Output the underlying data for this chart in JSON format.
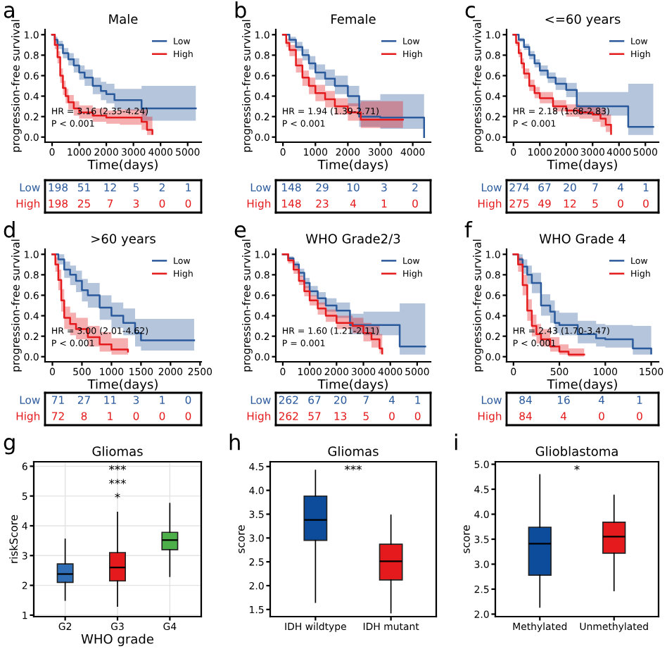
{
  "chart_data": [
    {
      "type": "step",
      "title": "Male",
      "xlabel": "Time(days)",
      "ylabel": "progression-free survival",
      "annotations": [
        "a",
        "HR = 3.16 (2.35-4.24)",
        "P < 0.001"
      ],
      "xlim": [
        -260,
        5500
      ],
      "xticks": [
        0,
        1000,
        2000,
        3000,
        4000,
        5000
      ],
      "ylim": [
        -0.05,
        1.05
      ],
      "yticks": [
        {
          "value": 0,
          "label": "0.0"
        },
        0.2,
        0.4,
        0.6,
        0.8,
        {
          "value": 1,
          "label": "1.0"
        }
      ],
      "legend": "top right",
      "series": [
        {
          "name": "Low",
          "color": "#2b5a9c",
          "x": [
            0,
            100,
            200,
            400,
            600,
            800,
            1000,
            1200,
            1500,
            1800,
            2000,
            2300,
            2700,
            3300,
            5300
          ],
          "values": [
            1,
            0.95,
            0.9,
            0.82,
            0.76,
            0.7,
            0.63,
            0.58,
            0.5,
            0.45,
            0.42,
            0.36,
            0.36,
            0.28,
            0.28
          ],
          "lower": [
            1,
            0.92,
            0.86,
            0.77,
            0.7,
            0.63,
            0.56,
            0.5,
            0.42,
            0.36,
            0.33,
            0.27,
            0.26,
            0.16,
            0.16
          ],
          "upper": [
            1,
            0.98,
            0.94,
            0.87,
            0.82,
            0.77,
            0.7,
            0.66,
            0.58,
            0.54,
            0.52,
            0.47,
            0.47,
            0.5,
            0.5
          ]
        },
        {
          "name": "High",
          "color": "#e41a1c",
          "x": [
            0,
            100,
            200,
            300,
            400,
            500,
            600,
            800,
            1000,
            1500,
            2000,
            2500,
            3300,
            3500,
            3700
          ],
          "values": [
            1,
            0.9,
            0.78,
            0.6,
            0.48,
            0.4,
            0.34,
            0.28,
            0.24,
            0.21,
            0.19,
            0.19,
            0.15,
            0.07,
            0.03
          ],
          "lower": [
            1,
            0.86,
            0.72,
            0.53,
            0.41,
            0.33,
            0.27,
            0.21,
            0.18,
            0.15,
            0.13,
            0.12,
            0.07,
            0.02,
            0.01
          ],
          "upper": [
            1,
            0.94,
            0.84,
            0.67,
            0.55,
            0.47,
            0.41,
            0.35,
            0.31,
            0.28,
            0.26,
            0.27,
            0.27,
            0.2,
            0.2
          ]
        }
      ]
    },
    {
      "type": "other",
      "colors": [
        "#2b5a9c",
        "#e41a1c"
      ],
      "annotations": [
        "Low",
        "198",
        "51",
        "12",
        "5",
        "2",
        "1",
        "High",
        "198",
        "25",
        "7",
        "3",
        "0",
        "0"
      ]
    },
    {
      "type": "step",
      "title": "Female",
      "xlabel": "Time(days)",
      "ylabel": "progression-free survival",
      "annotations": [
        "b",
        "HR = 1.94 (1.39-2.71)",
        "P < 0.001"
      ],
      "xlim": [
        -220,
        4550
      ],
      "xticks": [
        0,
        1000,
        2000,
        3000,
        4000
      ],
      "ylim": [
        -0.05,
        1.05
      ],
      "yticks": [
        {
          "value": 0,
          "label": "0.0"
        },
        0.2,
        0.4,
        0.6,
        0.8,
        {
          "value": 1,
          "label": "1.0"
        }
      ],
      "legend": "top right",
      "series": [
        {
          "name": "Low",
          "color": "#2b5a9c",
          "x": [
            0,
            200,
            400,
            600,
            800,
            1000,
            1300,
            1600,
            2000,
            2350,
            3000,
            4300,
            4350
          ],
          "values": [
            1,
            0.95,
            0.88,
            0.8,
            0.72,
            0.63,
            0.57,
            0.5,
            0.4,
            0.2,
            0.19,
            0.19,
            0.0
          ],
          "lower": [
            1,
            0.92,
            0.84,
            0.75,
            0.66,
            0.56,
            0.5,
            0.42,
            0.3,
            0.1,
            0.08,
            0.08,
            0.0
          ],
          "upper": [
            1,
            0.98,
            0.93,
            0.86,
            0.79,
            0.71,
            0.66,
            0.6,
            0.5,
            0.36,
            0.42,
            0.42,
            0.0
          ]
        },
        {
          "name": "High",
          "color": "#e41a1c",
          "x": [
            0,
            100,
            200,
            400,
            600,
            800,
            1000,
            1300,
            1600,
            2000,
            2400,
            3000,
            3700
          ],
          "values": [
            1,
            0.92,
            0.85,
            0.7,
            0.58,
            0.5,
            0.43,
            0.37,
            0.3,
            0.24,
            0.17,
            0.17,
            0.17
          ],
          "lower": [
            1,
            0.88,
            0.79,
            0.63,
            0.5,
            0.42,
            0.35,
            0.29,
            0.22,
            0.16,
            0.09,
            0.09,
            0.09
          ],
          "upper": [
            1,
            0.96,
            0.9,
            0.77,
            0.65,
            0.58,
            0.51,
            0.45,
            0.38,
            0.33,
            0.35,
            0.35,
            0.35
          ]
        }
      ]
    },
    {
      "type": "other",
      "colors": [
        "#2b5a9c",
        "#e41a1c"
      ],
      "annotations": [
        "Low",
        "148",
        "29",
        "10",
        "3",
        "2",
        "High",
        "148",
        "23",
        "4",
        "1",
        "0"
      ]
    },
    {
      "type": "step",
      "title": "<=60 years",
      "xlabel": "Time(days)",
      "ylabel": "progression-free survival",
      "annotations": [
        "c",
        "HR = 2.18 (1.68-2.83)",
        "P < 0.001"
      ],
      "xlim": [
        -260,
        5500
      ],
      "xticks": [
        0,
        1000,
        2000,
        3000,
        4000,
        5000
      ],
      "ylim": [
        -0.05,
        1.05
      ],
      "yticks": [
        {
          "value": 0,
          "label": "0.0"
        },
        0.2,
        0.4,
        0.6,
        0.8,
        {
          "value": 1,
          "label": "1.0"
        }
      ],
      "legend": "top right",
      "series": [
        {
          "name": "Low",
          "color": "#2b5a9c",
          "x": [
            0,
            200,
            400,
            600,
            800,
            1000,
            1300,
            1600,
            2000,
            2400,
            3000,
            4300,
            4350,
            5300
          ],
          "values": [
            1,
            0.95,
            0.88,
            0.8,
            0.72,
            0.65,
            0.58,
            0.52,
            0.46,
            0.3,
            0.3,
            0.3,
            0.1,
            0.1
          ],
          "lower": [
            1,
            0.93,
            0.85,
            0.76,
            0.68,
            0.6,
            0.53,
            0.46,
            0.39,
            0.22,
            0.21,
            0.21,
            0.02,
            0.02
          ],
          "upper": [
            1,
            0.97,
            0.91,
            0.84,
            0.76,
            0.7,
            0.63,
            0.58,
            0.53,
            0.44,
            0.44,
            0.44,
            0.52,
            0.52
          ]
        },
        {
          "name": "High",
          "color": "#e41a1c",
          "x": [
            0,
            100,
            200,
            300,
            400,
            600,
            800,
            1000,
            1500,
            2000,
            2500,
            3000,
            3300,
            3500,
            3700
          ],
          "values": [
            1,
            0.92,
            0.82,
            0.72,
            0.62,
            0.5,
            0.43,
            0.38,
            0.3,
            0.26,
            0.24,
            0.22,
            0.18,
            0.12,
            0.03
          ],
          "lower": [
            1,
            0.89,
            0.78,
            0.67,
            0.57,
            0.45,
            0.38,
            0.33,
            0.25,
            0.2,
            0.18,
            0.15,
            0.1,
            0.05,
            0.01
          ],
          "upper": [
            1,
            0.95,
            0.86,
            0.77,
            0.67,
            0.56,
            0.49,
            0.44,
            0.36,
            0.32,
            0.31,
            0.3,
            0.28,
            0.22,
            0.2
          ]
        }
      ]
    },
    {
      "type": "other",
      "colors": [
        "#2b5a9c",
        "#e41a1c"
      ],
      "annotations": [
        "Low",
        "274",
        "67",
        "20",
        "7",
        "4",
        "1",
        "High",
        "275",
        "49",
        "12",
        "5",
        "0",
        "0"
      ]
    },
    {
      "type": "step",
      "title": ">60 years",
      "xlabel": "Time(days)",
      "ylabel": "progression-free survival",
      "annotations": [
        "d",
        "HR = 3.00 (2.01-4.62)",
        "P < 0.001"
      ],
      "xlim": [
        -125,
        2520
      ],
      "xticks": [
        0,
        500,
        1000,
        1500,
        2000,
        2500
      ],
      "ylim": [
        -0.05,
        1.05
      ],
      "yticks": [
        {
          "value": 0,
          "label": "0.0"
        },
        0.2,
        0.4,
        0.6,
        0.8,
        {
          "value": 1,
          "label": "1.0"
        }
      ],
      "legend": "top right",
      "series": [
        {
          "name": "Low",
          "color": "#2b5a9c",
          "x": [
            0,
            100,
            200,
            300,
            400,
            500,
            600,
            800,
            1000,
            1200,
            1400,
            1500,
            2400
          ],
          "values": [
            1,
            0.95,
            0.85,
            0.8,
            0.74,
            0.65,
            0.6,
            0.48,
            0.4,
            0.33,
            0.23,
            0.16,
            0.16
          ],
          "lower": [
            1,
            0.9,
            0.77,
            0.7,
            0.63,
            0.54,
            0.48,
            0.36,
            0.28,
            0.21,
            0.1,
            0.06,
            0.06
          ],
          "upper": [
            1,
            1,
            0.93,
            0.89,
            0.84,
            0.76,
            0.72,
            0.6,
            0.53,
            0.47,
            0.37,
            0.37,
            0.37
          ]
        },
        {
          "name": "High",
          "color": "#e41a1c",
          "x": [
            0,
            50,
            100,
            150,
            200,
            300,
            400,
            600,
            800,
            1000,
            1280
          ],
          "values": [
            1,
            0.9,
            0.75,
            0.55,
            0.38,
            0.32,
            0.27,
            0.19,
            0.12,
            0.07,
            0.05
          ],
          "lower": [
            1,
            0.83,
            0.65,
            0.44,
            0.27,
            0.21,
            0.17,
            0.1,
            0.05,
            0.02,
            0.01
          ],
          "upper": [
            1,
            0.97,
            0.85,
            0.66,
            0.49,
            0.43,
            0.38,
            0.3,
            0.24,
            0.18,
            0.16
          ]
        }
      ]
    },
    {
      "type": "other",
      "colors": [
        "#2b5a9c",
        "#e41a1c"
      ],
      "annotations": [
        "Low",
        "71",
        "27",
        "11",
        "3",
        "1",
        "0",
        "High",
        "72",
        "8",
        "1",
        "0",
        "0",
        "0"
      ]
    },
    {
      "type": "step",
      "title": "WHO Grade2/3",
      "xlabel": "Time(days)",
      "ylabel": "progression-free survival",
      "annotations": [
        "e",
        "HR = 1.60 (1.21-2.11)",
        "P = 0.001"
      ],
      "xlim": [
        -260,
        5500
      ],
      "xticks": [
        0,
        1000,
        2000,
        3000,
        4000,
        5000
      ],
      "ylim": [
        -0.05,
        1.05
      ],
      "yticks": [
        {
          "value": 0,
          "label": "0.0"
        },
        0.2,
        0.4,
        0.6,
        0.8,
        {
          "value": 1,
          "label": "1.0"
        }
      ],
      "legend": "top right",
      "series": [
        {
          "name": "Low",
          "color": "#2b5a9c",
          "x": [
            0,
            200,
            400,
            600,
            800,
            1000,
            1300,
            1600,
            2000,
            2500,
            3000,
            4300,
            4350,
            5300
          ],
          "values": [
            1,
            0.96,
            0.9,
            0.82,
            0.72,
            0.64,
            0.57,
            0.5,
            0.45,
            0.31,
            0.31,
            0.31,
            0.1,
            0.1
          ],
          "lower": [
            1,
            0.94,
            0.87,
            0.78,
            0.67,
            0.59,
            0.51,
            0.44,
            0.38,
            0.22,
            0.21,
            0.21,
            0.02,
            0.02
          ],
          "upper": [
            1,
            0.98,
            0.93,
            0.86,
            0.77,
            0.69,
            0.63,
            0.57,
            0.53,
            0.42,
            0.44,
            0.44,
            0.52,
            0.52
          ]
        },
        {
          "name": "High",
          "color": "#e41a1c",
          "x": [
            0,
            200,
            400,
            600,
            800,
            1000,
            1300,
            1600,
            2000,
            2600,
            3000,
            3300,
            3600,
            3700
          ],
          "values": [
            1,
            0.94,
            0.85,
            0.74,
            0.64,
            0.55,
            0.47,
            0.4,
            0.33,
            0.3,
            0.23,
            0.17,
            0.08,
            0.03
          ],
          "lower": [
            1,
            0.91,
            0.81,
            0.7,
            0.59,
            0.5,
            0.41,
            0.34,
            0.27,
            0.23,
            0.15,
            0.09,
            0.03,
            0.01
          ],
          "upper": [
            1,
            0.97,
            0.89,
            0.79,
            0.69,
            0.6,
            0.53,
            0.46,
            0.4,
            0.38,
            0.33,
            0.3,
            0.22,
            0.2
          ]
        }
      ]
    },
    {
      "type": "other",
      "colors": [
        "#2b5a9c",
        "#e41a1c"
      ],
      "annotations": [
        "Low",
        "262",
        "67",
        "20",
        "7",
        "4",
        "1",
        "High",
        "262",
        "57",
        "13",
        "5",
        "0",
        "0"
      ]
    },
    {
      "type": "step",
      "title": "WHO Grade 4",
      "xlabel": "Time(days)",
      "ylabel": "progression-free survival",
      "annotations": [
        "f",
        "HR = 2.43 (1.70-3.47)",
        "P < 0.001"
      ],
      "xlim": [
        -75,
        1580
      ],
      "xticks": [
        0,
        500,
        1000,
        1500
      ],
      "ylim": [
        -0.05,
        1.05
      ],
      "yticks": [
        {
          "value": 0,
          "label": "0.0"
        },
        0.2,
        0.4,
        0.6,
        0.8,
        {
          "value": 1,
          "label": "1.0"
        }
      ],
      "legend": "top right",
      "series": [
        {
          "name": "Low",
          "color": "#2b5a9c",
          "x": [
            0,
            50,
            100,
            150,
            200,
            300,
            400,
            450,
            500,
            700,
            900,
            1000,
            1300,
            1500
          ],
          "values": [
            1,
            0.95,
            0.88,
            0.8,
            0.72,
            0.5,
            0.44,
            0.33,
            0.31,
            0.22,
            0.18,
            0.17,
            0.08,
            0.03
          ],
          "lower": [
            1,
            0.9,
            0.81,
            0.71,
            0.62,
            0.4,
            0.33,
            0.23,
            0.21,
            0.13,
            0.1,
            0.09,
            0.02,
            0.0
          ],
          "upper": [
            1,
            1,
            0.95,
            0.89,
            0.82,
            0.61,
            0.55,
            0.45,
            0.43,
            0.35,
            0.32,
            0.31,
            0.3,
            0.3
          ]
        },
        {
          "name": "High",
          "color": "#e41a1c",
          "x": [
            0,
            50,
            100,
            150,
            200,
            250,
            300,
            400,
            500,
            600,
            770
          ],
          "values": [
            1,
            0.9,
            0.7,
            0.45,
            0.3,
            0.22,
            0.17,
            0.1,
            0.05,
            0.02,
            0.02
          ],
          "lower": [
            1,
            0.83,
            0.6,
            0.35,
            0.2,
            0.13,
            0.1,
            0.05,
            0.02,
            0.0,
            0.0
          ],
          "upper": [
            1,
            0.97,
            0.8,
            0.56,
            0.41,
            0.32,
            0.27,
            0.19,
            0.12,
            0.08,
            0.08
          ]
        }
      ]
    },
    {
      "type": "other",
      "colors": [
        "#2b5a9c",
        "#e41a1c"
      ],
      "annotations": [
        "Low",
        "84",
        "16",
        "4",
        "1",
        "High",
        "84",
        "4",
        "0",
        "0"
      ]
    },
    {
      "type": "box",
      "title": "Gliomas",
      "xlabel": "WHO grade",
      "ylabel": "riskScore",
      "annotations": [
        "g",
        "*",
        "***",
        "***"
      ],
      "categories": [
        "G2",
        "G3",
        "G4"
      ],
      "colors": [
        "#2f6db5",
        "#e41a1c",
        "#4daf4a"
      ],
      "ylim": [
        0.95,
        6.15
      ],
      "yticks": [
        1,
        2,
        3,
        4,
        5,
        6
      ],
      "grid": true,
      "boxes": [
        {
          "low": 1.5,
          "q1": 2.1,
          "median": 2.38,
          "q3": 2.72,
          "high": 3.55
        },
        {
          "low": 1.3,
          "q1": 2.15,
          "median": 2.6,
          "q3": 3.1,
          "high": 4.45
        },
        {
          "low": 2.3,
          "q1": 3.2,
          "median": 3.52,
          "q3": 3.78,
          "high": 4.75
        }
      ]
    },
    {
      "type": "box",
      "title": "Gliomas",
      "ylabel": "score",
      "annotations": [
        "h",
        "***"
      ],
      "categories": [
        "IDH wildtype",
        "IDH mutant"
      ],
      "colors": [
        "#0d4b9b",
        "#e41a1c"
      ],
      "ylim": [
        1.35,
        4.6
      ],
      "yticks": [
        1.5,
        {
          "value": 2,
          "label": "2.0"
        },
        2.5,
        {
          "value": 3,
          "label": "3.0"
        },
        3.5,
        {
          "value": 4,
          "label": "4.0"
        },
        4.5
      ],
      "boxes": [
        {
          "low": 1.65,
          "q1": 2.95,
          "median": 3.38,
          "q3": 3.88,
          "high": 4.42
        },
        {
          "low": 1.43,
          "q1": 2.12,
          "median": 2.51,
          "q3": 2.87,
          "high": 3.48
        }
      ]
    },
    {
      "type": "box",
      "title": "Glioblastoma",
      "ylabel": "score",
      "annotations": [
        "i",
        "*"
      ],
      "categories": [
        "Methylated",
        "Unmethylated"
      ],
      "colors": [
        "#0d4b9b",
        "#e41a1c"
      ],
      "ylim": [
        1.95,
        5.05
      ],
      "yticks": [
        {
          "value": 2,
          "label": "2.0"
        },
        2.5,
        {
          "value": 3,
          "label": "3.0"
        },
        3.5,
        {
          "value": 4,
          "label": "4.0"
        },
        4.5,
        {
          "value": 5,
          "label": "5.0"
        }
      ],
      "boxes": [
        {
          "low": 2.14,
          "q1": 2.78,
          "median": 3.41,
          "q3": 3.74,
          "high": 4.79
        },
        {
          "low": 2.47,
          "q1": 3.22,
          "median": 3.55,
          "q3": 3.84,
          "high": 4.38
        }
      ]
    }
  ]
}
